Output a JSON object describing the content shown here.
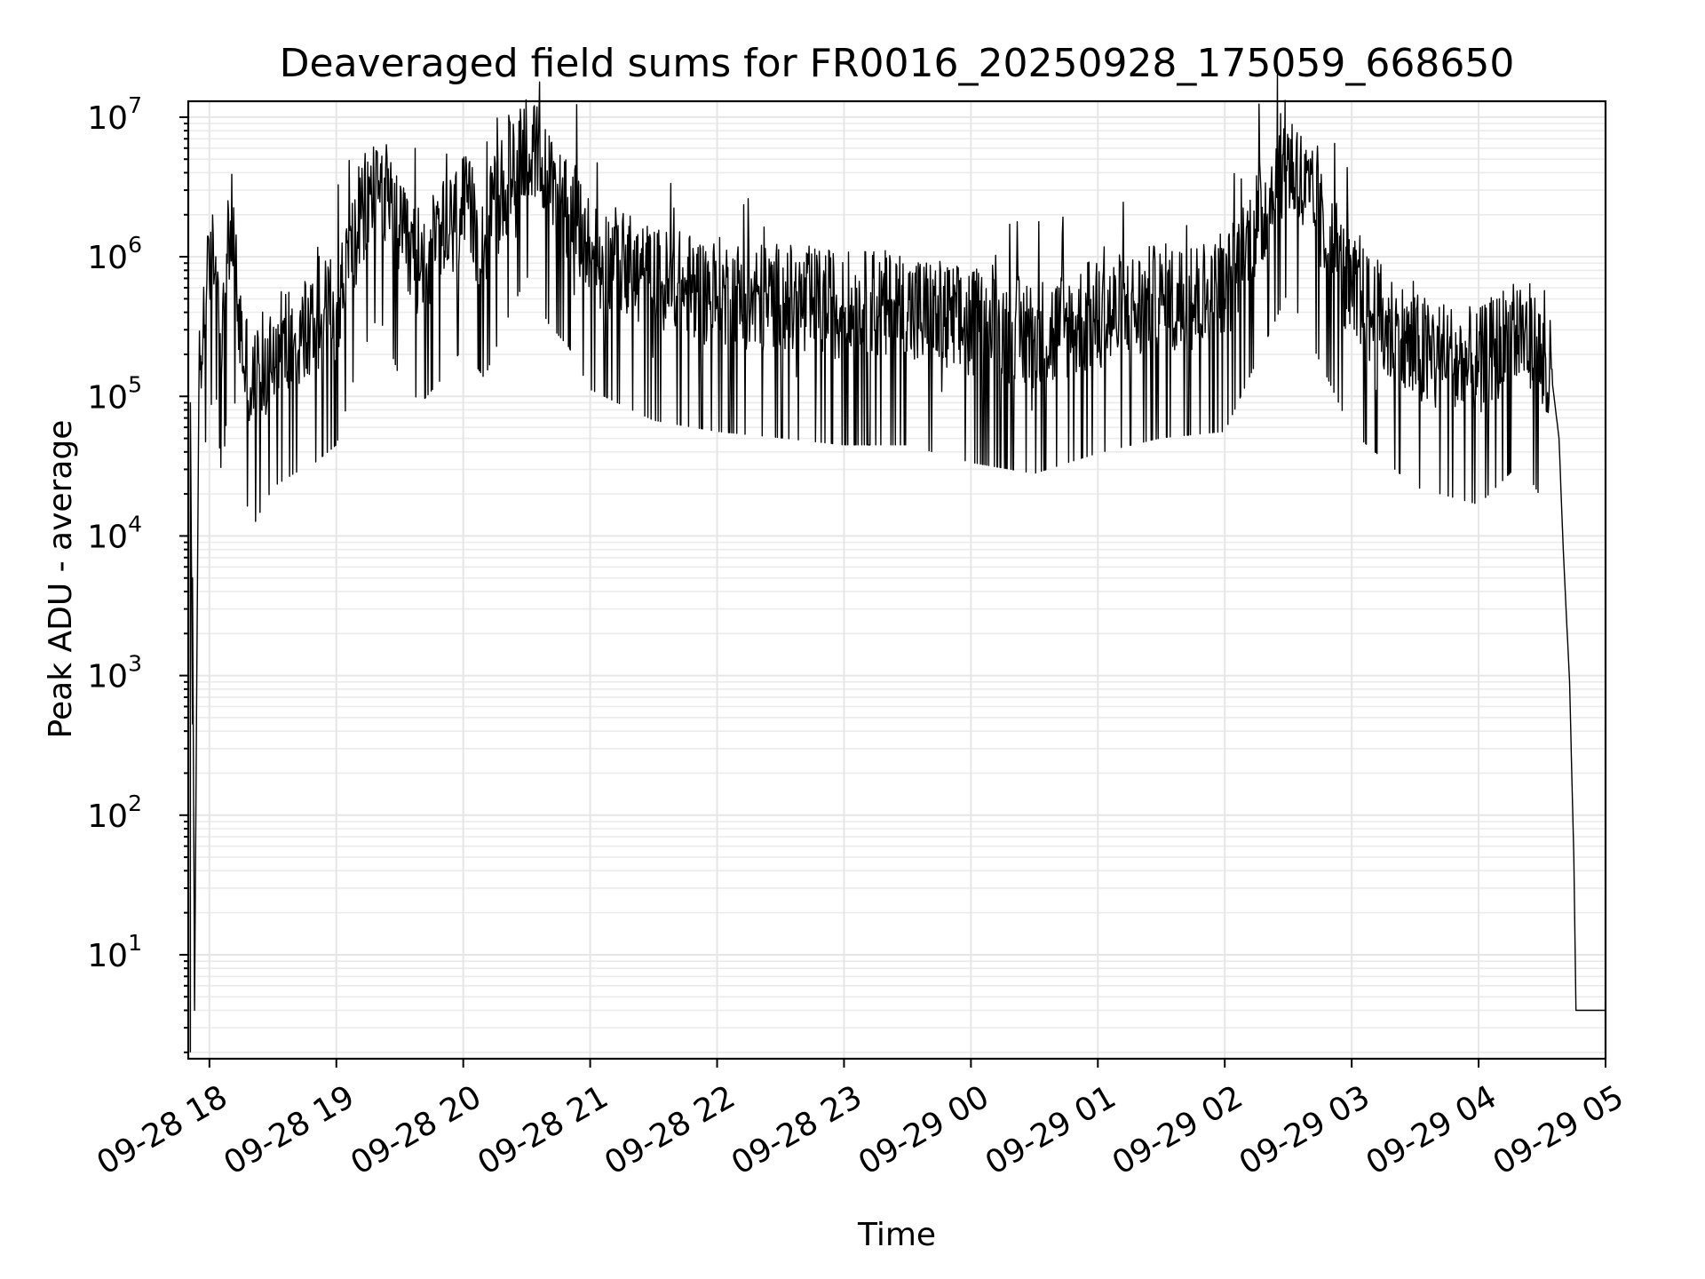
{
  "chart_data": {
    "type": "line",
    "title": "Deaveraged field sums for FR0016_20250928_175059_668650",
    "xlabel": "Time",
    "ylabel": "Peak ADU - average",
    "yscale": "log",
    "ylim": [
      1.8,
      13000000
    ],
    "xlim": [
      "2025-09-28 17:50",
      "2025-09-29 05:00"
    ],
    "grid": true,
    "x_ticks": [
      "09-28 18",
      "09-28 19",
      "09-28 20",
      "09-28 21",
      "09-28 22",
      "09-28 23",
      "09-29 00",
      "09-29 01",
      "09-29 02",
      "09-29 03",
      "09-29 04",
      "09-29 05"
    ],
    "y_ticks": [
      10,
      100,
      1000,
      10000,
      100000,
      1000000,
      10000000
    ],
    "series": [
      {
        "color": "#000000",
        "points": [
          [
            "2025-09-28 17:51",
            2
          ],
          [
            "2025-09-28 17:51",
            90000
          ],
          [
            "2025-09-28 17:52",
            450
          ],
          [
            "2025-09-28 17:52",
            5000
          ],
          [
            "2025-09-28 17:53",
            4
          ],
          [
            "2025-09-28 17:54",
            800
          ],
          [
            "2025-09-28 17:55",
            100000
          ],
          [
            "2025-09-28 17:57",
            300000
          ],
          [
            "2025-09-28 18:00",
            700000
          ],
          [
            "2025-09-28 18:03",
            1000000
          ],
          [
            "2025-09-28 18:06",
            200000
          ],
          [
            "2025-09-28 18:10",
            1800000
          ],
          [
            "2025-09-28 18:15",
            250000
          ],
          [
            "2025-09-28 18:20",
            100000
          ],
          [
            "2025-09-28 18:30",
            200000
          ],
          [
            "2025-09-28 18:40",
            250000
          ],
          [
            "2025-09-28 18:50",
            300000
          ],
          [
            "2025-09-28 19:00",
            400000
          ],
          [
            "2025-09-28 19:10",
            1500000
          ],
          [
            "2025-09-28 19:20",
            3500000
          ],
          [
            "2025-09-28 19:30",
            1200000
          ],
          [
            "2025-09-28 19:40",
            800000
          ],
          [
            "2025-09-28 19:50",
            1200000
          ],
          [
            "2025-09-28 20:00",
            2000000
          ],
          [
            "2025-09-28 20:10",
            1200000
          ],
          [
            "2025-09-28 20:20",
            3000000
          ],
          [
            "2025-09-28 20:30",
            6500000
          ],
          [
            "2025-09-28 20:40",
            3000000
          ],
          [
            "2025-09-28 20:50",
            2000000
          ],
          [
            "2025-09-28 21:00",
            1000000
          ],
          [
            "2025-09-28 21:30",
            600000
          ],
          [
            "2025-09-28 22:00",
            500000
          ],
          [
            "2025-09-28 22:30",
            450000
          ],
          [
            "2025-09-28 23:00",
            400000
          ],
          [
            "2025-09-28 23:30",
            400000
          ],
          [
            "2025-09-29 00:00",
            300000
          ],
          [
            "2025-09-29 00:30",
            250000
          ],
          [
            "2025-09-29 01:00",
            350000
          ],
          [
            "2025-09-29 01:30",
            450000
          ],
          [
            "2025-09-29 02:00",
            500000
          ],
          [
            "2025-09-29 02:30",
            5000000
          ],
          [
            "2025-09-29 03:00",
            500000
          ],
          [
            "2025-09-29 03:30",
            200000
          ],
          [
            "2025-09-29 04:00",
            150000
          ],
          [
            "2025-09-29 04:20",
            300000
          ],
          [
            "2025-09-29 04:35",
            120000
          ],
          [
            "2025-09-29 04:38",
            50000
          ],
          [
            "2025-09-29 04:40",
            8000
          ],
          [
            "2025-09-29 04:43",
            900
          ],
          [
            "2025-09-29 04:45",
            50
          ],
          [
            "2025-09-29 04:46",
            4
          ],
          [
            "2025-09-29 05:00",
            4
          ]
        ]
      }
    ]
  }
}
